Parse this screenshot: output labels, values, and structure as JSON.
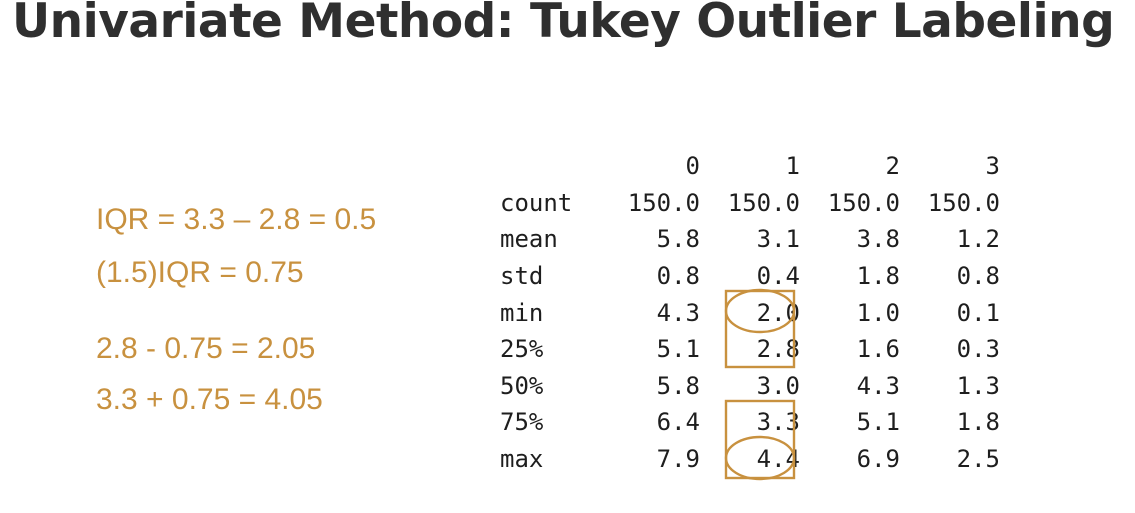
{
  "title": "Univariate Method: Tukey Outlier Labeling",
  "calculations": [
    "IQR = 3.3 – 2.8 = 0.5",
    "(1.5)IQR = 0.75",
    "2.8 - 0.75 = 2.05",
    "3.3 + 0.75 = 4.05"
  ],
  "table": {
    "columns": [
      "0",
      "1",
      "2",
      "3"
    ],
    "rows": [
      {
        "label": "count",
        "values": [
          "150.0",
          "150.0",
          "150.0",
          "150.0"
        ]
      },
      {
        "label": "mean",
        "values": [
          "5.8",
          "3.1",
          "3.8",
          "1.2"
        ]
      },
      {
        "label": "std",
        "values": [
          "0.8",
          "0.4",
          "1.8",
          "0.8"
        ]
      },
      {
        "label": "min",
        "values": [
          "4.3",
          "2.0",
          "1.0",
          "0.1"
        ]
      },
      {
        "label": "25%",
        "values": [
          "5.1",
          "2.8",
          "1.6",
          "0.3"
        ]
      },
      {
        "label": "50%",
        "values": [
          "5.8",
          "3.0",
          "4.3",
          "1.3"
        ]
      },
      {
        "label": "75%",
        "values": [
          "6.4",
          "3.3",
          "5.1",
          "1.8"
        ]
      },
      {
        "label": "max",
        "values": [
          "7.9",
          "4.4",
          "6.9",
          "2.5"
        ]
      }
    ]
  },
  "highlights": {
    "boxed_cells": [
      "25%/1",
      "75%/1"
    ],
    "circled_cells": [
      "min/1",
      "max/1"
    ]
  },
  "colors": {
    "accent": "#c8913f",
    "title": "#2f2f2f",
    "table_text": "#1e1e1e"
  }
}
